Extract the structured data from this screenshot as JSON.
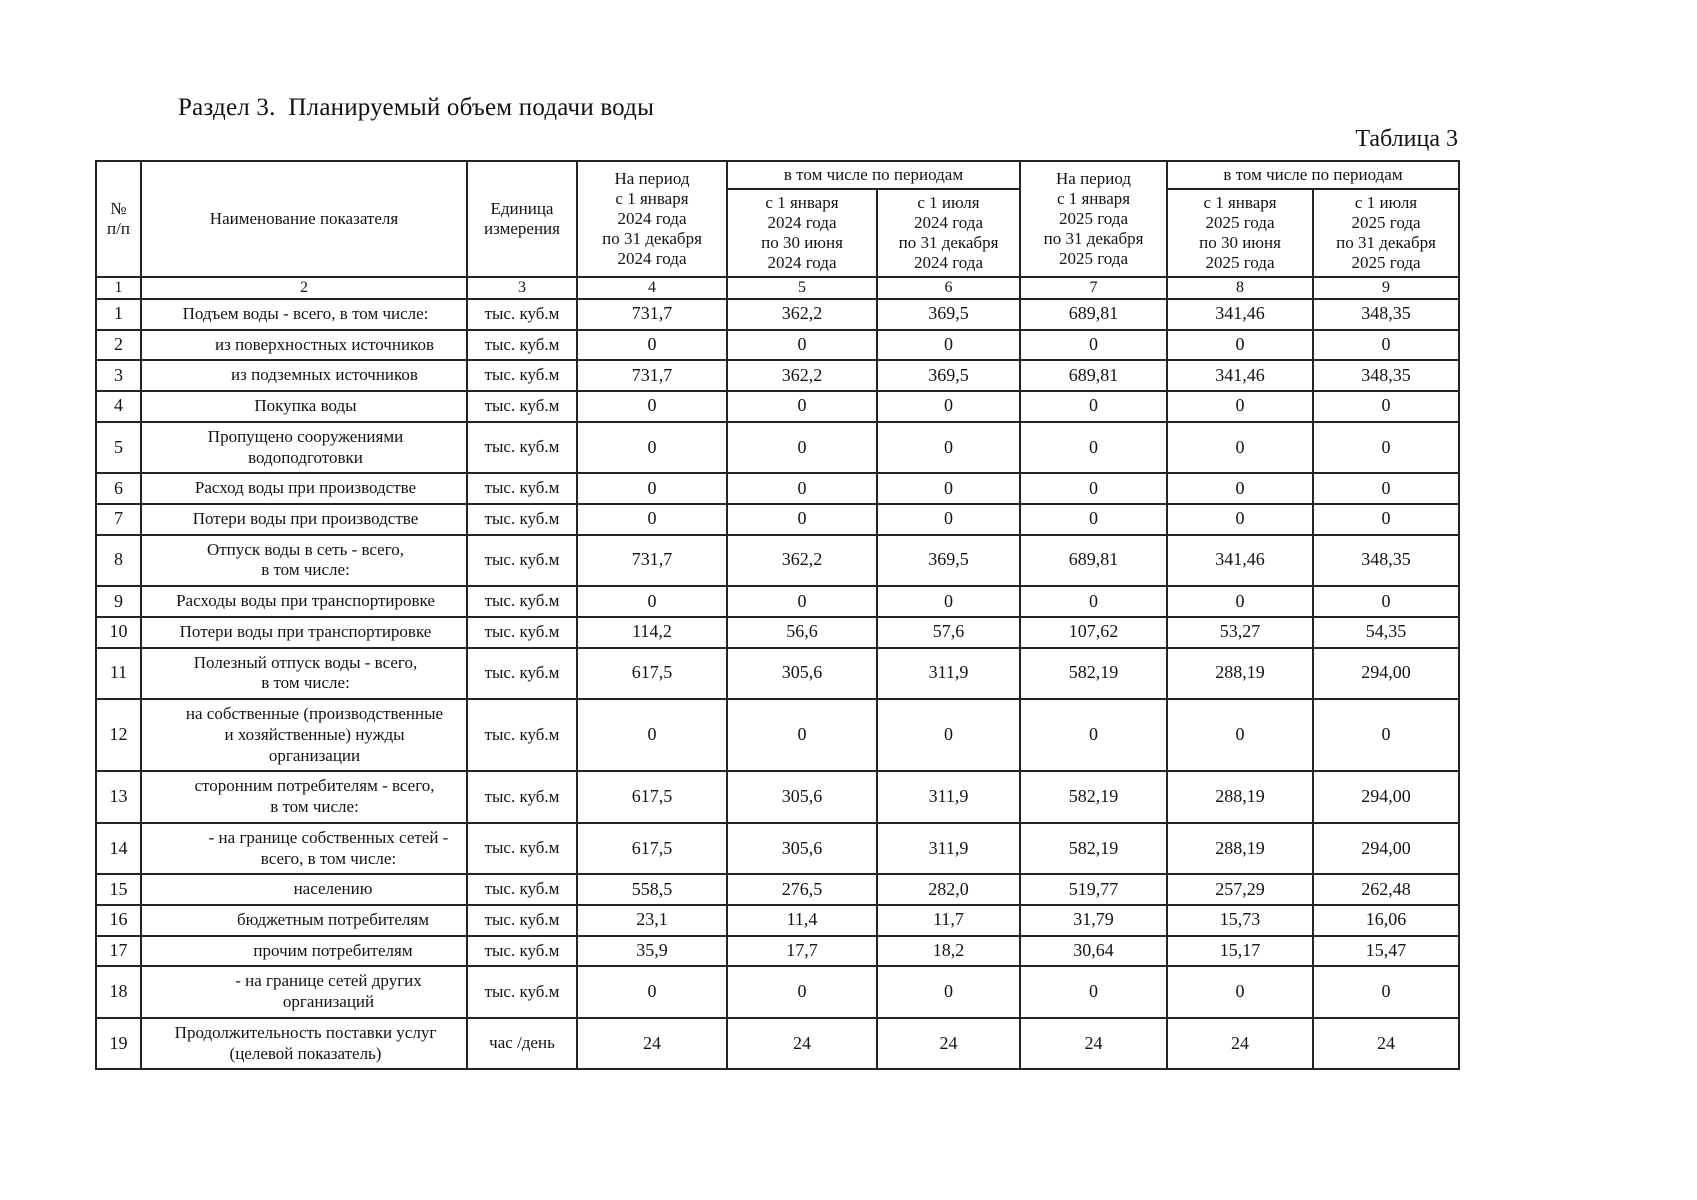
{
  "page": {
    "section_title": "Раздел 3.  Планируемый объем подачи воды",
    "table_label": "Таблица 3"
  },
  "table": {
    "header": {
      "num": "№\nп/п",
      "indicator": "Наименование показателя",
      "unit": "Единица\nизмерения",
      "period_2024": "На период\nс 1 января\n2024 года\nпо 31 декабря\n2024 года",
      "including_2024": "в том числе по периодам",
      "sub_2024_h1": "с 1 января\n2024 года\nпо 30 июня\n2024 года",
      "sub_2024_h2": "с 1 июля\n2024 года\nпо 31 декабря\n2024 года",
      "period_2025": "На период\nс 1 января\n2025 года\nпо 31 декабря\n2025 года",
      "including_2025": "в том числе по периодам",
      "sub_2025_h1": "с 1 января\n2025 года\nпо 30 июня\n2025 года",
      "sub_2025_h2": "с 1 июля\n2025 года\nпо 31 декабря\n2025 года",
      "col_numbers": [
        "1",
        "2",
        "3",
        "4",
        "5",
        "6",
        "7",
        "8",
        "9"
      ]
    },
    "rows": [
      {
        "num": "1",
        "indent": 0,
        "name": "Подъем воды - всего, в том числе:",
        "unit": "тыс. куб.м",
        "values": [
          "731,7",
          "362,2",
          "369,5",
          "689,81",
          "341,46",
          "348,35"
        ]
      },
      {
        "num": "2",
        "indent": 2,
        "name": "из поверхностных источников",
        "unit": "тыс. куб.м",
        "values": [
          "0",
          "0",
          "0",
          "0",
          "0",
          "0"
        ]
      },
      {
        "num": "3",
        "indent": 2,
        "name": "из подземных источников",
        "unit": "тыс. куб.м",
        "values": [
          "731,7",
          "362,2",
          "369,5",
          "689,81",
          "341,46",
          "348,35"
        ]
      },
      {
        "num": "4",
        "indent": 0,
        "name": "Покупка воды",
        "unit": "тыс. куб.м",
        "values": [
          "0",
          "0",
          "0",
          "0",
          "0",
          "0"
        ]
      },
      {
        "num": "5",
        "indent": 0,
        "name": "Пропущено сооружениями\nводоподготовки",
        "unit": "тыс. куб.м",
        "values": [
          "0",
          "0",
          "0",
          "0",
          "0",
          "0"
        ]
      },
      {
        "num": "6",
        "indent": 0,
        "name": "Расход воды при производстве",
        "unit": "тыс. куб.м",
        "values": [
          "0",
          "0",
          "0",
          "0",
          "0",
          "0"
        ]
      },
      {
        "num": "7",
        "indent": 0,
        "name": "Потери воды при производстве",
        "unit": "тыс. куб.м",
        "values": [
          "0",
          "0",
          "0",
          "0",
          "0",
          "0"
        ]
      },
      {
        "num": "8",
        "indent": 0,
        "name": "Отпуск воды в сеть - всего,\nв том числе:",
        "unit": "тыс. куб.м",
        "values": [
          "731,7",
          "362,2",
          "369,5",
          "689,81",
          "341,46",
          "348,35"
        ]
      },
      {
        "num": "9",
        "indent": 0,
        "name": "Расходы воды при транспортировке",
        "unit": "тыс. куб.м",
        "values": [
          "0",
          "0",
          "0",
          "0",
          "0",
          "0"
        ]
      },
      {
        "num": "10",
        "indent": 0,
        "name": "Потери воды при транспортировке",
        "unit": "тыс. куб.м",
        "values": [
          "114,2",
          "56,6",
          "57,6",
          "107,62",
          "53,27",
          "54,35"
        ]
      },
      {
        "num": "11",
        "indent": 0,
        "name": "Полезный отпуск воды - всего,\nв том числе:",
        "unit": "тыс. куб.м",
        "values": [
          "617,5",
          "305,6",
          "311,9",
          "582,19",
          "288,19",
          "294,00"
        ]
      },
      {
        "num": "12",
        "indent": 1,
        "name": "на собственные (производственные\nи хозяйственные) нужды\nорганизации",
        "unit": "тыс. куб.м",
        "values": [
          "0",
          "0",
          "0",
          "0",
          "0",
          "0"
        ]
      },
      {
        "num": "13",
        "indent": 1,
        "name": "сторонним потребителям - всего,\nв том числе:",
        "unit": "тыс. куб.м",
        "values": [
          "617,5",
          "305,6",
          "311,9",
          "582,19",
          "288,19",
          "294,00"
        ]
      },
      {
        "num": "14",
        "indent": 3,
        "name": "- на границе собственных сетей -\nвсего, в том числе:",
        "unit": "тыс. куб.м",
        "values": [
          "617,5",
          "305,6",
          "311,9",
          "582,19",
          "288,19",
          "294,00"
        ]
      },
      {
        "num": "15",
        "indent": 4,
        "name": "населению",
        "unit": "тыс. куб.м",
        "values": [
          "558,5",
          "276,5",
          "282,0",
          "519,77",
          "257,29",
          "262,48"
        ]
      },
      {
        "num": "16",
        "indent": 4,
        "name": "бюджетным потребителям",
        "unit": "тыс. куб.м",
        "values": [
          "23,1",
          "11,4",
          "11,7",
          "31,79",
          "15,73",
          "16,06"
        ]
      },
      {
        "num": "17",
        "indent": 4,
        "name": "прочим потребителям",
        "unit": "тыс. куб.м",
        "values": [
          "35,9",
          "17,7",
          "18,2",
          "30,64",
          "15,17",
          "15,47"
        ]
      },
      {
        "num": "18",
        "indent": 3,
        "name": "- на границе сетей других\nорганизаций",
        "unit": "тыс. куб.м",
        "values": [
          "0",
          "0",
          "0",
          "0",
          "0",
          "0"
        ]
      },
      {
        "num": "19",
        "indent": 0,
        "name": "Продолжительность поставки услуг\n(целевой показатель)",
        "unit": "час /день",
        "values": [
          "24",
          "24",
          "24",
          "24",
          "24",
          "24"
        ]
      }
    ]
  }
}
